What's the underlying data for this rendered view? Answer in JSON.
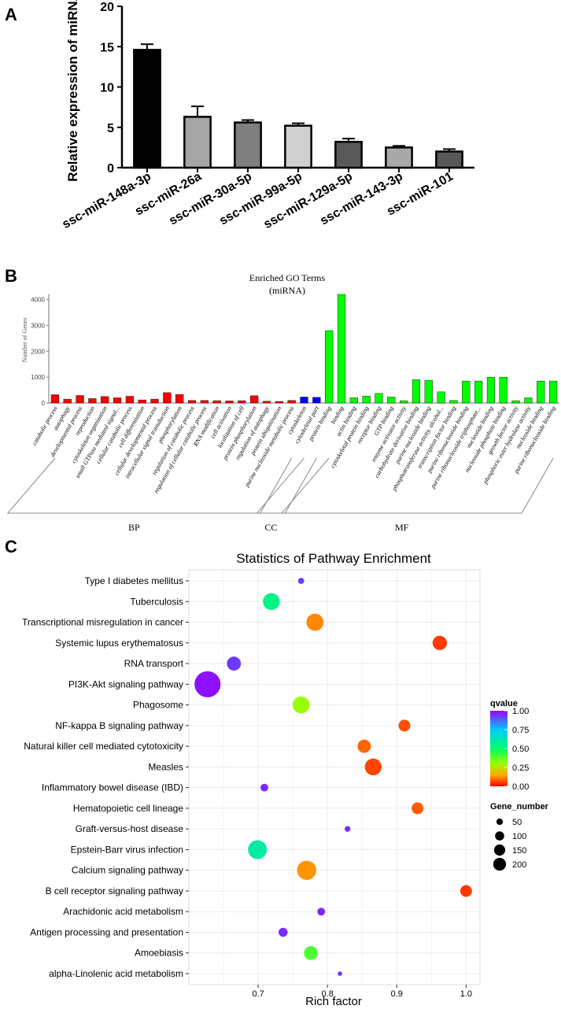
{
  "colors": {
    "black": "#000000",
    "bar_red": "#ff0000",
    "bar_blue": "#0000ff",
    "bar_green": "#00ff00",
    "gridC": "#ebebeb"
  },
  "chart_data": [
    {
      "id": "A",
      "panel_label": "A",
      "type": "bar",
      "title": "",
      "ylabel": "Relative expression of miRNA",
      "xlabel": "",
      "ylim": [
        0,
        20
      ],
      "yticks": [
        0,
        5,
        10,
        15,
        20
      ],
      "categories": [
        "ssc-miR-148a-3p",
        "ssc-miR-26a",
        "ssc-miR-30a-5p",
        "ssc-miR-99a-5p",
        "ssc-miR-129a-5p",
        "ssc-miR-143-3p",
        "ssc-miR-101"
      ],
      "values": [
        14.6,
        6.3,
        5.6,
        5.2,
        3.2,
        2.5,
        2.0
      ],
      "errors": [
        0.7,
        1.3,
        0.3,
        0.3,
        0.4,
        0.2,
        0.3
      ],
      "fills": [
        "#000000",
        "#a5a5a5",
        "#7f7f7f",
        "#d0d0d0",
        "#595959",
        "#a8a8a8",
        "#595959"
      ]
    },
    {
      "id": "B",
      "panel_label": "B",
      "type": "bar",
      "title": "Enriched GO Terms",
      "subtitle": "(miRNA)",
      "ylabel": "Number of Genes",
      "ylim": [
        0,
        4200
      ],
      "yticks": [
        0,
        1000,
        2000,
        3000,
        4000
      ],
      "categories": [
        "catabolic process",
        "autophagy",
        "developmental process",
        "reproduction",
        "cytoskeleton organization",
        "small GTPase mediated signal...",
        "cellular catabolic process",
        "cell differentiation",
        "cellular developmental process",
        "intracellular signal transduction",
        "phosphorylation",
        "regulation of catabolic process",
        "regulation of cellular catabolic process",
        "RNA modification",
        "cell activation",
        "localization of cell",
        "protein phosphorylation",
        "regulation of autophagy",
        "protein ubiquitination",
        "purine nucleoside metabolic process",
        "cytoskeleton",
        "cytoskeletal part",
        "protein binding",
        "binding",
        "actin binding",
        "cytoskeletal protein binding",
        "receptor binding",
        "GTP binding",
        "enzyme activator activity",
        "carbohydrate derivative binding",
        "purine nucleotide binding",
        "phosphotransferase activity, alcohol...",
        "transcription factor binding",
        "purine ribonucleotide binding",
        "purine ribonucleoside triphosphate...",
        "nucleotide binding",
        "nucleoside phosphate binding",
        "growth factor activity",
        "phosphoric ester hydrolase activity",
        "nucleoside binding",
        "purine ribonucleoside binding"
      ],
      "values": [
        320,
        150,
        290,
        170,
        250,
        200,
        260,
        120,
        150,
        400,
        330,
        100,
        100,
        90,
        80,
        90,
        280,
        70,
        60,
        100,
        230,
        220,
        2800,
        4200,
        200,
        270,
        370,
        230,
        90,
        900,
        880,
        430,
        100,
        850,
        850,
        1000,
        1000,
        90,
        200,
        850,
        850
      ],
      "groups": [
        {
          "name": "BP",
          "count": 20,
          "color": "#ff0000"
        },
        {
          "name": "CC",
          "count": 2,
          "color": "#0000ff"
        },
        {
          "name": "MF",
          "count": 19,
          "color": "#00ff00"
        }
      ]
    },
    {
      "id": "C",
      "panel_label": "C",
      "type": "scatter",
      "title": "Statistics of Pathway Enrichment",
      "xlabel": "Rich factor",
      "ylabel": "",
      "xlim": [
        0.6,
        1.02
      ],
      "xticks": [
        0.7,
        0.8,
        0.9,
        1.0
      ],
      "xtick_labels": [
        "0.7",
        "0.8",
        "0.9",
        "1.0"
      ],
      "grid": true,
      "pathways": [
        {
          "name": "Type I diabetes mellitus",
          "rich": 0.762,
          "genes": 14,
          "q": 0.93
        },
        {
          "name": "Tuberculosis",
          "rich": 0.719,
          "genes": 104,
          "q": 0.55
        },
        {
          "name": "Transcriptional misregulation in cancer",
          "rich": 0.782,
          "genes": 108,
          "q": 0.12
        },
        {
          "name": "Systemic lupus erythematosus",
          "rich": 0.962,
          "genes": 75,
          "q": 0.05
        },
        {
          "name": "RNA transport",
          "rich": 0.665,
          "genes": 72,
          "q": 0.93
        },
        {
          "name": "PI3K-Akt signaling pathway",
          "rich": 0.627,
          "genes": 250,
          "q": 0.98
        },
        {
          "name": "Phagosome",
          "rich": 0.762,
          "genes": 105,
          "q": 0.3
        },
        {
          "name": "NF-kappa B signaling pathway",
          "rich": 0.911,
          "genes": 51,
          "q": 0.07
        },
        {
          "name": "Natural killer cell mediated cytotoxicity",
          "rich": 0.853,
          "genes": 64,
          "q": 0.09
        },
        {
          "name": "Measles",
          "rich": 0.866,
          "genes": 103,
          "q": 0.06
        },
        {
          "name": "Inflammatory bowel disease (IBD)",
          "rich": 0.709,
          "genes": 22,
          "q": 0.95
        },
        {
          "name": "Hematopoietic cell lineage",
          "rich": 0.93,
          "genes": 51,
          "q": 0.08
        },
        {
          "name": "Graft-versus-host disease",
          "rich": 0.829,
          "genes": 12,
          "q": 0.95
        },
        {
          "name": "Epstein-Barr virus infection",
          "rich": 0.699,
          "genes": 130,
          "q": 0.6
        },
        {
          "name": "Calcium signaling pathway",
          "rich": 0.77,
          "genes": 135,
          "q": 0.13
        },
        {
          "name": "B cell receptor signaling pathway",
          "rich": 1.0,
          "genes": 50,
          "q": 0.05
        },
        {
          "name": "Arachidonic acid metabolism",
          "rich": 0.791,
          "genes": 22,
          "q": 0.95
        },
        {
          "name": "Antigen processing and presentation",
          "rich": 0.736,
          "genes": 30,
          "q": 0.95
        },
        {
          "name": "Amoebiasis",
          "rich": 0.776,
          "genes": 70,
          "q": 0.4
        },
        {
          "name": "alpha-Linolenic acid metabolism",
          "rich": 0.818,
          "genes": 7,
          "q": 0.95
        }
      ],
      "legend_color": {
        "title": "qvalue",
        "ticks": [
          "1.00",
          "0.75",
          "0.50",
          "0.25",
          "0.00"
        ],
        "tick_values": [
          1.0,
          0.75,
          0.5,
          0.25,
          0.0
        ]
      },
      "legend_size": {
        "title": "Gene_number",
        "labels": [
          "50",
          "100",
          "150",
          "200"
        ],
        "values": [
          50,
          100,
          150,
          200
        ]
      }
    }
  ]
}
